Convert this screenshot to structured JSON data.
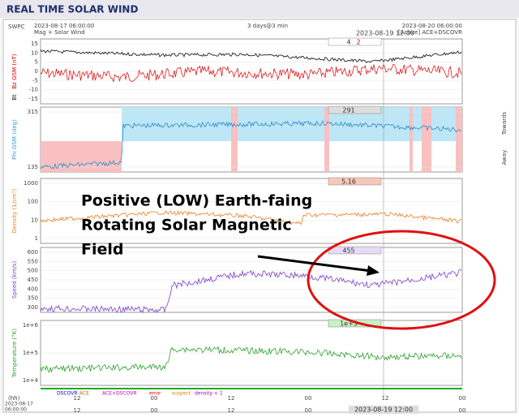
{
  "header": {
    "title": "REAL TIME SOLAR WIND"
  },
  "info": {
    "source": "SWPC",
    "start": "2023-08-17 06:00:00",
    "subtitle": "Mag + Solar Wind",
    "span": "3 days@3 min",
    "end": "2023-08-20 06:00:00",
    "status": "[Active] ACE+DSCOVR",
    "cursor": "2023-08-19 12:00"
  },
  "panels": [
    {
      "label": "Bz GSM (nT)",
      "label2": "Bt",
      "ticks": [
        "15",
        "10",
        "5",
        "0",
        "-5",
        "-10",
        "-15"
      ],
      "readouts": [
        "4",
        "2"
      ]
    },
    {
      "label": "Phi GSM (deg)",
      "ticks": [
        "315",
        "135"
      ],
      "readouts": [
        "291"
      ],
      "side_top": "Towards",
      "side_bottom": "Away"
    },
    {
      "label": "Density (1/cm³)",
      "ticks": [
        "1000",
        "100",
        "10",
        "1"
      ],
      "readouts": [
        "5.16"
      ]
    },
    {
      "label": "Speed (km/s)",
      "ticks": [
        "600",
        "550",
        "500",
        "450",
        "400",
        "350",
        "300"
      ],
      "readouts": [
        "455"
      ]
    },
    {
      "label": "Temperature (°K)",
      "ticks": [
        "1e+6",
        "1e+5",
        "1e+4"
      ],
      "readouts": [
        "1e+5"
      ]
    }
  ],
  "legend": [
    "DSCOVR",
    "ACE",
    "ACE+DSCOVR",
    "error",
    "suspect",
    "density < 1"
  ],
  "x_axis": {
    "unit": "(hh)",
    "start_date": "2023-08-17",
    "start_time": "06:00:00",
    "labels": [
      "12",
      "00",
      "12",
      "00",
      "12",
      "00"
    ],
    "cursor": "2023-08-19 12:00"
  },
  "annotation": {
    "lines": [
      "Positive (LOW) Earth-faing",
      "Rotating Solar Magnetic",
      "Field"
    ]
  }
}
